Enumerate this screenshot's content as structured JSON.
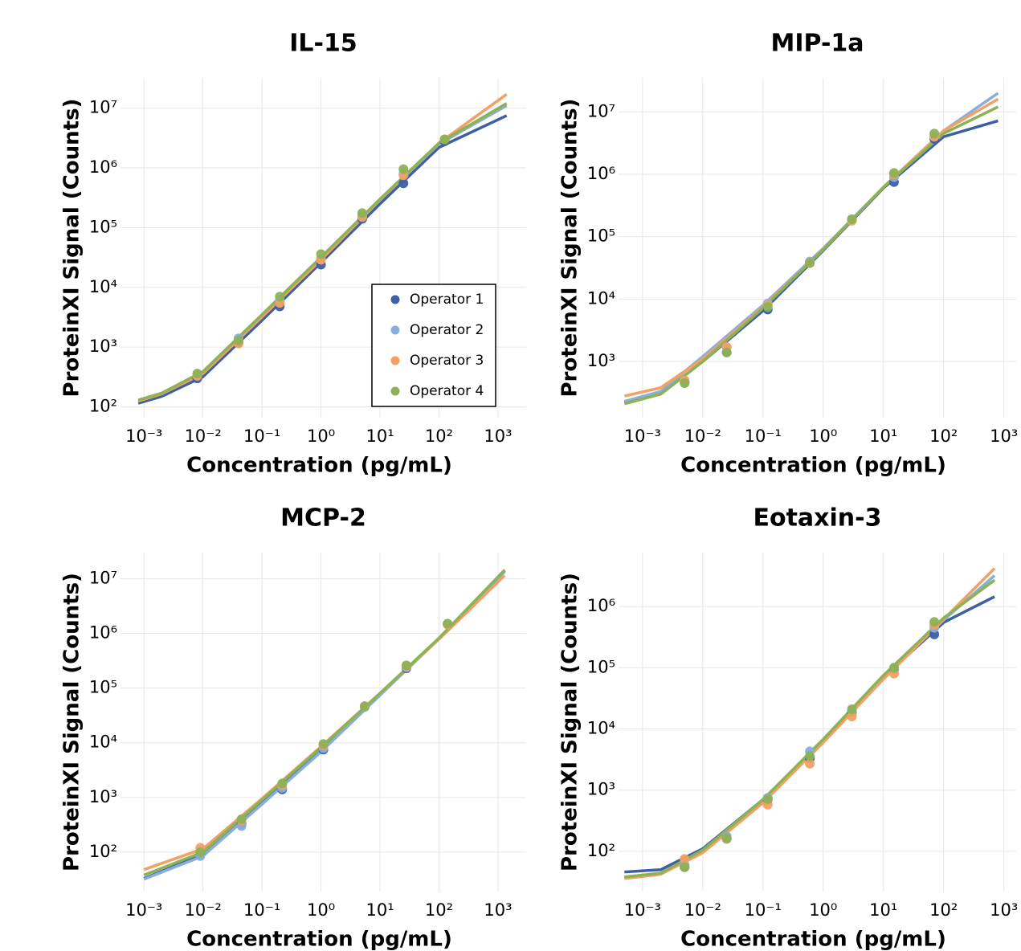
{
  "chart_data": [
    {
      "type": "line",
      "title": "IL-15",
      "x_label": "Concentration (pg/mL)",
      "y_label": "ProteinXI Signal (Counts)",
      "log_x": true,
      "log_y": true,
      "grid": true,
      "legend": "lower right",
      "xlim": [
        0.0004,
        3000
      ],
      "ylim": [
        66,
        32000000
      ],
      "xticks": [
        {
          "value": 0.001,
          "label": "10⁻³"
        },
        {
          "value": 0.01,
          "label": "10⁻²"
        },
        {
          "value": 0.1,
          "label": "10⁻¹"
        },
        {
          "value": 1,
          "label": "10⁰"
        },
        {
          "value": 10,
          "label": "10¹"
        },
        {
          "value": 100,
          "label": "10²"
        },
        {
          "value": 1000,
          "label": "10³"
        }
      ],
      "yticks": [
        {
          "value": 100,
          "label": "10²"
        },
        {
          "value": 1000,
          "label": "10³"
        },
        {
          "value": 10000,
          "label": "10⁴"
        },
        {
          "value": 100000,
          "label": "10⁵"
        },
        {
          "value": 1000000,
          "label": "10⁶"
        },
        {
          "value": 10000000,
          "label": "10⁷"
        }
      ],
      "x": [
        0.008,
        0.04,
        0.2,
        1,
        5,
        25,
        125
      ],
      "fit_x": [
        0.0008,
        0.002,
        0.01,
        0.1,
        1,
        10,
        100,
        1400
      ],
      "series": [
        {
          "name": "Operator 1",
          "color": "#3c5fa5",
          "values": [
            300,
            1200,
            4800,
            24000,
            140000,
            550000,
            2800000
          ],
          "fit": [
            115,
            150,
            320,
            2800,
            26000,
            250000,
            2200000,
            7500000
          ]
        },
        {
          "name": "Operator 2",
          "color": "#8aaedc",
          "values": [
            350,
            1400,
            6000,
            30000,
            160000,
            800000,
            3000000
          ],
          "fit": [
            125,
            170,
            380,
            3300,
            30000,
            290000,
            2500000,
            11000000
          ]
        },
        {
          "name": "Operator 3",
          "color": "#f2a064",
          "values": [
            330,
            1150,
            5500,
            29000,
            150000,
            750000,
            3000000
          ],
          "fit": [
            125,
            165,
            360,
            3200,
            29000,
            290000,
            2600000,
            17000000
          ]
        },
        {
          "name": "Operator 4",
          "color": "#8db255",
          "values": [
            360,
            1300,
            7000,
            36000,
            175000,
            950000,
            3000000
          ],
          "fit": [
            130,
            170,
            390,
            3500,
            32000,
            300000,
            2600000,
            12000000
          ]
        }
      ]
    },
    {
      "type": "line",
      "title": "MIP-1a",
      "x_label": "Concentration (pg/mL)",
      "y_label": "ProteinXI Signal (Counts)",
      "log_x": true,
      "log_y": true,
      "grid": true,
      "xlim": [
        0.0004,
        1600
      ],
      "ylim": [
        126,
        35000000
      ],
      "xticks": [
        {
          "value": 0.001,
          "label": "10⁻³"
        },
        {
          "value": 0.01,
          "label": "10⁻²"
        },
        {
          "value": 0.1,
          "label": "10⁻¹"
        },
        {
          "value": 1,
          "label": "10⁰"
        },
        {
          "value": 10,
          "label": "10¹"
        },
        {
          "value": 100,
          "label": "10²"
        },
        {
          "value": 1000,
          "label": "10³"
        }
      ],
      "yticks": [
        {
          "value": 1000,
          "label": "10³"
        },
        {
          "value": 10000,
          "label": "10⁴"
        },
        {
          "value": 100000,
          "label": "10⁵"
        },
        {
          "value": 1000000,
          "label": "10⁶"
        },
        {
          "value": 10000000,
          "label": "10⁷"
        }
      ],
      "x": [
        0.005,
        0.025,
        0.12,
        0.6,
        3,
        15,
        70
      ],
      "fit_x": [
        0.0005,
        0.002,
        0.01,
        0.1,
        1,
        10,
        100,
        800
      ],
      "series": [
        {
          "color": "#3c5fa5",
          "values": [
            470,
            1400,
            6800,
            38000,
            190000,
            750000,
            3700000
          ],
          "fit": [
            220,
            300,
            1000,
            6500,
            60000,
            600000,
            4000000,
            7200000
          ]
        },
        {
          "color": "#8aaedc",
          "values": [
            480,
            1700,
            8500,
            40000,
            190000,
            900000,
            4000000
          ],
          "fit": [
            230,
            330,
            1200,
            8000,
            65000,
            620000,
            5000000,
            20000000
          ]
        },
        {
          "color": "#f2a064",
          "values": [
            500,
            1700,
            8000,
            38000,
            180000,
            1000000,
            4000000
          ],
          "fit": [
            280,
            380,
            1100,
            7500,
            62000,
            620000,
            5000000,
            16000000
          ]
        },
        {
          "color": "#8db255",
          "values": [
            450,
            1400,
            7500,
            38000,
            190000,
            1050000,
            4500000
          ],
          "fit": [
            210,
            300,
            1000,
            7200,
            62000,
            620000,
            4500000,
            12000000
          ]
        }
      ]
    },
    {
      "type": "line",
      "title": "MCP-2",
      "x_label": "Concentration (pg/mL)",
      "y_label": "ProteinXI Signal (Counts)",
      "log_x": true,
      "log_y": true,
      "grid": true,
      "xlim": [
        0.0004,
        3000
      ],
      "ylim": [
        19,
        30000000
      ],
      "xticks": [
        {
          "value": 0.001,
          "label": "10⁻³"
        },
        {
          "value": 0.01,
          "label": "10⁻²"
        },
        {
          "value": 0.1,
          "label": "10⁻¹"
        },
        {
          "value": 1,
          "label": "10⁰"
        },
        {
          "value": 10,
          "label": "10¹"
        },
        {
          "value": 100,
          "label": "10²"
        },
        {
          "value": 1000,
          "label": "10³"
        }
      ],
      "yticks": [
        {
          "value": 100,
          "label": "10²"
        },
        {
          "value": 1000,
          "label": "10³"
        },
        {
          "value": 10000,
          "label": "10⁴"
        },
        {
          "value": 100000,
          "label": "10⁵"
        },
        {
          "value": 1000000,
          "label": "10⁶"
        },
        {
          "value": 10000000,
          "label": "10⁷"
        }
      ],
      "x": [
        0.009,
        0.045,
        0.22,
        1.1,
        5.5,
        28,
        140
      ],
      "fit_x": [
        0.001,
        0.01,
        0.1,
        1,
        10,
        100,
        1300
      ],
      "series": [
        {
          "color": "#3c5fa5",
          "values": [
            90,
            330,
            1400,
            7500,
            46000,
            230000,
            1500000
          ],
          "fit": [
            33,
            90,
            800,
            7000,
            75000,
            800000,
            14000000
          ]
        },
        {
          "color": "#8aaedc",
          "values": [
            85,
            300,
            1500,
            8000,
            45000,
            240000,
            1500000
          ],
          "fit": [
            32,
            85,
            750,
            6800,
            74000,
            800000,
            13500000
          ]
        },
        {
          "color": "#f2a064",
          "values": [
            120,
            380,
            1700,
            9000,
            47000,
            250000,
            1450000
          ],
          "fit": [
            48,
            115,
            950,
            8500,
            80000,
            780000,
            11500000
          ]
        },
        {
          "color": "#8db255",
          "values": [
            100,
            400,
            1800,
            9500,
            46000,
            260000,
            1500000
          ],
          "fit": [
            38,
            100,
            900,
            8200,
            80000,
            820000,
            14500000
          ]
        }
      ]
    },
    {
      "type": "line",
      "title": "Eotaxin-3",
      "x_label": "Concentration (pg/mL)",
      "y_label": "ProteinXI Signal (Counts)",
      "log_x": true,
      "log_y": true,
      "grid": true,
      "xlim": [
        0.0004,
        1600
      ],
      "ylim": [
        22,
        7600000
      ],
      "xticks": [
        {
          "value": 0.001,
          "label": "10⁻³"
        },
        {
          "value": 0.01,
          "label": "10⁻²"
        },
        {
          "value": 0.1,
          "label": "10⁻¹"
        },
        {
          "value": 1,
          "label": "10⁰"
        },
        {
          "value": 10,
          "label": "10¹"
        },
        {
          "value": 100,
          "label": "10²"
        },
        {
          "value": 1000,
          "label": "10³"
        }
      ],
      "yticks": [
        {
          "value": 100,
          "label": "10²"
        },
        {
          "value": 1000,
          "label": "10³"
        },
        {
          "value": 10000,
          "label": "10⁴"
        },
        {
          "value": 100000,
          "label": "10⁵"
        },
        {
          "value": 1000000,
          "label": "10⁶"
        }
      ],
      "x": [
        0.005,
        0.025,
        0.12,
        0.6,
        3,
        15,
        70
      ],
      "fit_x": [
        0.0005,
        0.002,
        0.01,
        0.1,
        1,
        10,
        100,
        700
      ],
      "series": [
        {
          "color": "#3c5fa5",
          "values": [
            55,
            160,
            700,
            3300,
            19000,
            95000,
            350000
          ],
          "fit": [
            46,
            50,
            110,
            700,
            6500,
            70000,
            550000,
            1450000
          ]
        },
        {
          "color": "#8aaedc",
          "values": [
            60,
            175,
            750,
            4300,
            20000,
            100000,
            450000
          ],
          "fit": [
            38,
            44,
            100,
            680,
            6500,
            70000,
            600000,
            3200000
          ]
        },
        {
          "color": "#f2a064",
          "values": [
            75,
            160,
            580,
            2700,
            16000,
            80000,
            500000
          ],
          "fit": [
            36,
            42,
            95,
            620,
            6000,
            65000,
            620000,
            4200000
          ]
        },
        {
          "color": "#8db255",
          "values": [
            55,
            165,
            720,
            3600,
            21000,
            100000,
            560000
          ],
          "fit": [
            38,
            44,
            105,
            700,
            6800,
            75000,
            650000,
            2700000
          ]
        }
      ]
    }
  ]
}
